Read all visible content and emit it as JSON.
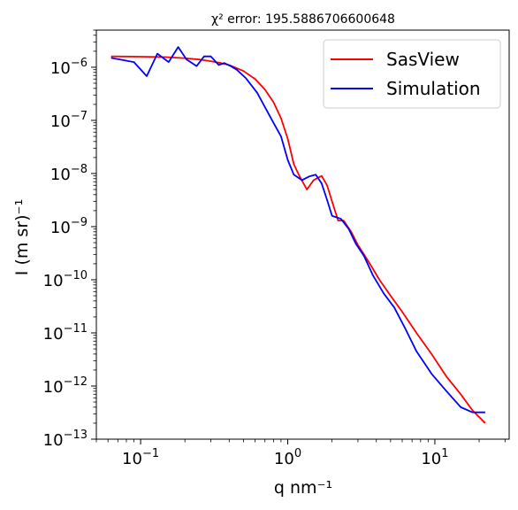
{
  "chart_data": {
    "type": "line",
    "title": "χ² error: 195.5886706600648",
    "xlabel": "q nm⁻¹",
    "ylabel": "I (m sr)⁻¹",
    "xscale": "log",
    "yscale": "log",
    "xlim": [
      0.05,
      32
    ],
    "ylim": [
      1e-13,
      5e-06
    ],
    "grid": false,
    "legend_position": "top-right",
    "x_ticks": [
      {
        "value": 0.1,
        "base": "10",
        "exp": "−1"
      },
      {
        "value": 1,
        "base": "10",
        "exp": "0"
      },
      {
        "value": 10,
        "base": "10",
        "exp": "1"
      }
    ],
    "y_ticks": [
      {
        "value": 1e-06,
        "base": "10",
        "exp": "−6"
      },
      {
        "value": 1e-07,
        "base": "10",
        "exp": "−7"
      },
      {
        "value": 1e-08,
        "base": "10",
        "exp": "−8"
      },
      {
        "value": 1e-09,
        "base": "10",
        "exp": "−9"
      },
      {
        "value": 1e-10,
        "base": "10",
        "exp": "−10"
      },
      {
        "value": 1e-11,
        "base": "10",
        "exp": "−11"
      },
      {
        "value": 1e-12,
        "base": "10",
        "exp": "−12"
      },
      {
        "value": 1e-13,
        "base": "10",
        "exp": "−13"
      }
    ],
    "series": [
      {
        "name": "SasView",
        "color": "#ff0000",
        "x": [
          0.063,
          0.1,
          0.15,
          0.2,
          0.25,
          0.3,
          0.35,
          0.4,
          0.5,
          0.6,
          0.7,
          0.8,
          0.9,
          1.0,
          1.1,
          1.2,
          1.35,
          1.5,
          1.7,
          1.85,
          2.0,
          2.2,
          2.4,
          2.7,
          3.0,
          3.3,
          3.7,
          4.2,
          5.0,
          6.0,
          7.5,
          9.5,
          12,
          15,
          18,
          22
        ],
        "y": [
          1.6e-06,
          1.58e-06,
          1.55e-06,
          1.48e-06,
          1.4e-06,
          1.3e-06,
          1.2e-06,
          1.1e-06,
          8.5e-07,
          6e-07,
          3.8e-07,
          2.2e-07,
          1.1e-07,
          4.5e-08,
          1.5e-08,
          9e-09,
          5e-09,
          7.5e-09,
          9e-09,
          6e-09,
          3e-09,
          1.3e-09,
          1.3e-09,
          8e-10,
          4.5e-10,
          3e-10,
          1.8e-10,
          1e-10,
          5e-11,
          2.5e-11,
          1e-11,
          4e-12,
          1.5e-12,
          7e-13,
          3.5e-13,
          2e-13
        ]
      },
      {
        "name": "Simulation",
        "color": "#0000ff",
        "x": [
          0.063,
          0.09,
          0.11,
          0.13,
          0.155,
          0.18,
          0.205,
          0.24,
          0.27,
          0.3,
          0.34,
          0.37,
          0.41,
          0.45,
          0.52,
          0.62,
          0.75,
          0.9,
          1.0,
          1.1,
          1.25,
          1.4,
          1.55,
          1.7,
          1.85,
          2.0,
          2.3,
          2.6,
          2.9,
          3.3,
          3.8,
          4.5,
          5.3,
          6.3,
          7.5,
          9.5,
          12,
          15,
          18,
          22
        ],
        "y": [
          1.5e-06,
          1.25e-06,
          6.8e-07,
          1.8e-06,
          1.25e-06,
          2.4e-06,
          1.4e-06,
          1.05e-06,
          1.6e-06,
          1.6e-06,
          1.1e-06,
          1.2e-06,
          1.05e-06,
          9e-07,
          6.2e-07,
          3.3e-07,
          1.25e-07,
          5e-08,
          1.8e-08,
          9.5e-09,
          7.5e-09,
          8.8e-09,
          9.5e-09,
          6.5e-09,
          3.2e-09,
          1.6e-09,
          1.4e-09,
          9e-10,
          4.8e-10,
          2.8e-10,
          1.2e-10,
          5.5e-11,
          3e-11,
          1.2e-11,
          4.5e-12,
          1.7e-12,
          8e-13,
          4e-13,
          3.2e-13,
          3.2e-13
        ]
      }
    ]
  }
}
